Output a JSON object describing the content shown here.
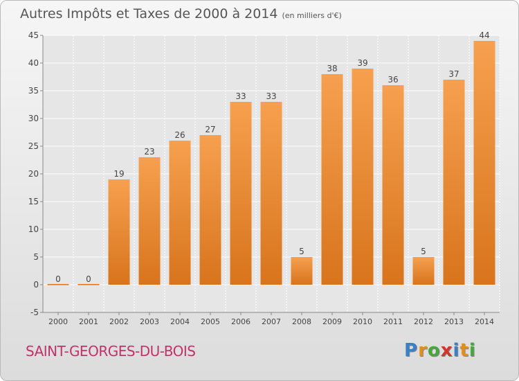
{
  "title": "Autres Impôts et Taxes de 2000 à 2014",
  "subtitle": "(en milliers d'€)",
  "commune": "SAINT-GEORGES-DU-BOIS",
  "logo": {
    "text": "Proxiti",
    "letters": [
      {
        "ch": "P",
        "color": "#3b7fc4"
      },
      {
        "ch": "r",
        "color": "#e0901a"
      },
      {
        "ch": "o",
        "color": "#49a63a"
      },
      {
        "ch": "x",
        "color": "#d1342b"
      },
      {
        "ch": "i",
        "color": "#3b7fc4"
      },
      {
        "ch": "t",
        "color": "#e0901a"
      },
      {
        "ch": "i",
        "color": "#49a63a"
      }
    ]
  },
  "colors": {
    "bar_top": "#f6a04f",
    "bar_bottom": "#d8741c",
    "grid": "#ffffff",
    "axis_text": "#444444"
  },
  "chart_data": {
    "type": "bar",
    "categories": [
      "2000",
      "2001",
      "2002",
      "2003",
      "2004",
      "2005",
      "2006",
      "2007",
      "2008",
      "2009",
      "2010",
      "2011",
      "2012",
      "2013",
      "2014"
    ],
    "values": [
      0,
      0,
      19,
      23,
      26,
      27,
      33,
      33,
      5,
      38,
      39,
      36,
      5,
      37,
      44
    ],
    "data_labels": [
      "0",
      "0",
      "19",
      "23",
      "26",
      "27",
      "33",
      "33",
      "5",
      "38",
      "39",
      "36",
      "5",
      "37",
      "44"
    ],
    "title": "Autres Impôts et Taxes de 2000 à 2014",
    "ylim": [
      -5,
      45
    ],
    "yticks": [
      -5,
      0,
      5,
      10,
      15,
      20,
      25,
      30,
      35,
      40,
      45
    ],
    "ytick_labels": [
      "-5",
      "0",
      "5",
      "10",
      "15",
      "20",
      "25",
      "30",
      "35",
      "40",
      "45"
    ],
    "grid": true,
    "legend": "none"
  }
}
